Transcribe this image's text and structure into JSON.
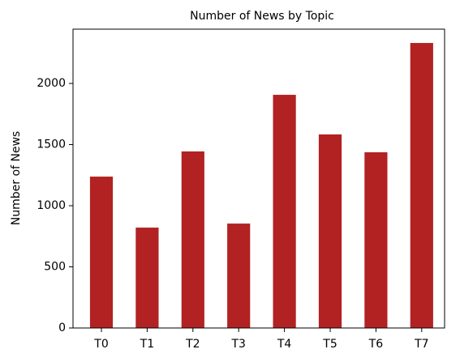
{
  "chart_data": {
    "type": "bar",
    "title": "Number of News by  Topic",
    "y_label": "Number of News",
    "categories": [
      "T0",
      "T1",
      "T2",
      "T3",
      "T4",
      "T5",
      "T6",
      "T7"
    ],
    "values": [
      1238,
      821,
      1444,
      854,
      1907,
      1583,
      1437,
      2331
    ],
    "color": "#b22222",
    "ylim": [
      0,
      2444
    ],
    "yticks": [
      0,
      500,
      1000,
      1500,
      2000
    ],
    "grid": false
  }
}
